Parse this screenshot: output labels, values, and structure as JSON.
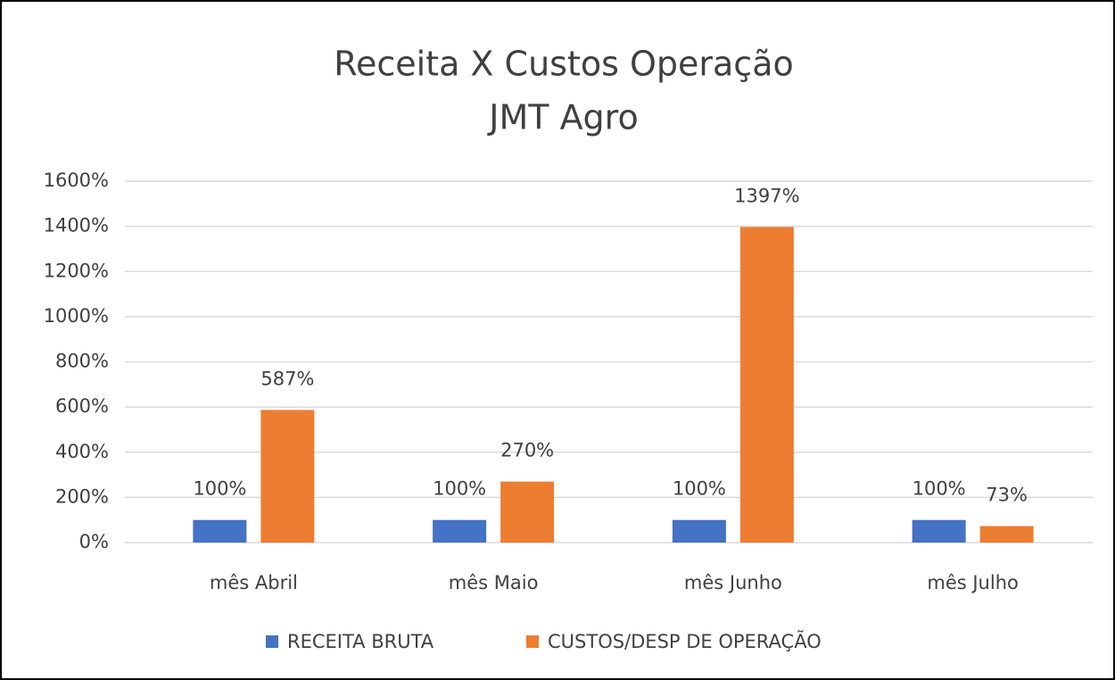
{
  "chart_data": {
    "type": "bar",
    "title": "Receita X Custos Operação",
    "subtitle": "JMT Agro",
    "categories": [
      "mês Abril",
      "mês Maio",
      "mês Junho",
      "mês Julho"
    ],
    "series": [
      {
        "name": "RECEITA BRUTA",
        "color": "#4472c4",
        "values": [
          100,
          100,
          100,
          100
        ],
        "value_labels": [
          "100%",
          "100%",
          "100%",
          "100%"
        ]
      },
      {
        "name": "CUSTOS/DESP DE OPERAÇÃO",
        "color": "#ed7d31",
        "values": [
          587,
          270,
          1397,
          73
        ],
        "value_labels": [
          "587%",
          "270%",
          "1397%",
          "73%"
        ]
      }
    ],
    "ylim": [
      0,
      1600
    ],
    "yticks": [
      {
        "value": 0,
        "label": "0%"
      },
      {
        "value": 200,
        "label": "200%"
      },
      {
        "value": 400,
        "label": "400%"
      },
      {
        "value": 600,
        "label": "600%"
      },
      {
        "value": 800,
        "label": "800%"
      },
      {
        "value": 1000,
        "label": "1000%"
      },
      {
        "value": 1200,
        "label": "1200%"
      },
      {
        "value": 1400,
        "label": "1400%"
      },
      {
        "value": 1600,
        "label": "1600%"
      }
    ],
    "grid": true,
    "legend": "bottom"
  }
}
